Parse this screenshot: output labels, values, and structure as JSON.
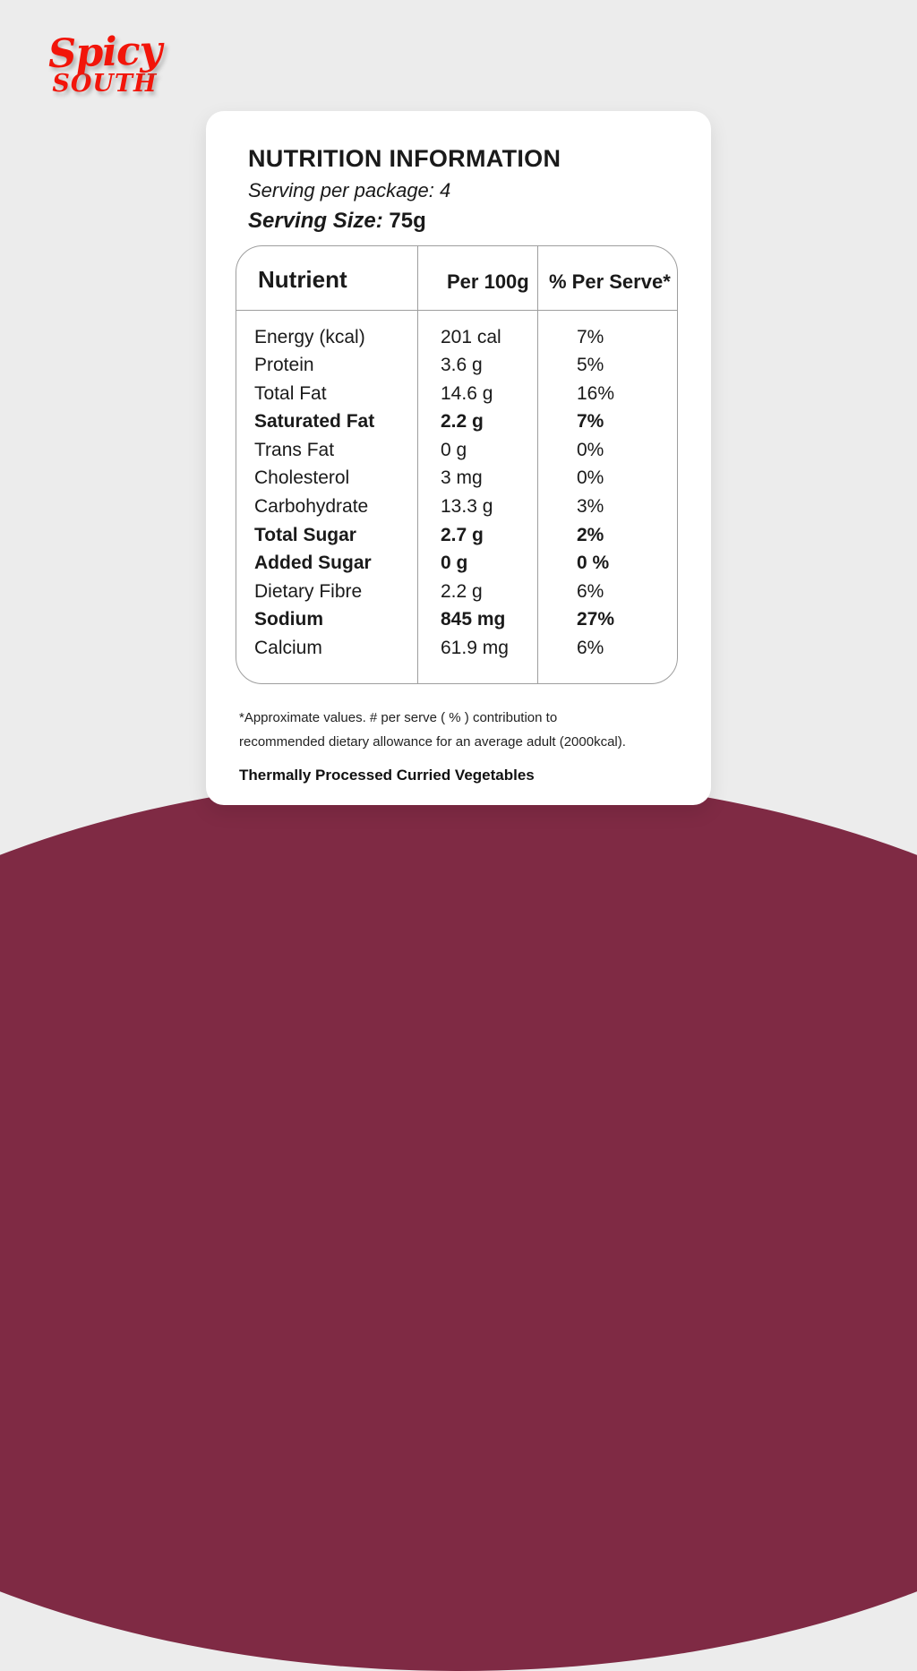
{
  "colors": {
    "background": "#ececec",
    "card": "#ffffff",
    "maroon_arc": "#7f2a44",
    "logo_red": "#f2150a",
    "table_border": "#9e9e9e",
    "text": "#1a1a1a"
  },
  "logo": {
    "line1": "Spicy",
    "line2": "SOUTH"
  },
  "card": {
    "title": "NUTRITION INFORMATION",
    "serving_per_package": "Serving per package: 4",
    "serving_size_label": "Serving Size:",
    "serving_size_value": "75g",
    "footnote_line1": "*Approximate values. # per serve  ( % )  contribution to",
    "footnote_line2": "recommended dietary allowance for an average adult (2000kcal).",
    "product_name": "Thermally Processed Curried Vegetables"
  },
  "table": {
    "columns": [
      "Nutrient",
      "Per 100g",
      "% Per Serve*"
    ],
    "rows": [
      {
        "nutrient": "Energy (kcal)",
        "per_100g": "201 cal",
        "per_serve": "7%",
        "bold": false
      },
      {
        "nutrient": "Protein",
        "per_100g": "3.6 g",
        "per_serve": "5%",
        "bold": false
      },
      {
        "nutrient": "Total Fat",
        "per_100g": "14.6 g",
        "per_serve": "16%",
        "bold": false
      },
      {
        "nutrient": "Saturated Fat",
        "per_100g": "2.2 g",
        "per_serve": "7%",
        "bold": true
      },
      {
        "nutrient": "Trans Fat",
        "per_100g": "0 g",
        "per_serve": "0%",
        "bold": false
      },
      {
        "nutrient": "Cholesterol",
        "per_100g": "3 mg",
        "per_serve": "0%",
        "bold": false
      },
      {
        "nutrient": "Carbohydrate",
        "per_100g": "13.3 g",
        "per_serve": "3%",
        "bold": false
      },
      {
        "nutrient": "Total Sugar",
        "per_100g": "2.7 g",
        "per_serve": "2%",
        "bold": true
      },
      {
        "nutrient": "Added Sugar",
        "per_100g": "0 g",
        "per_serve": "0 %",
        "bold": true
      },
      {
        "nutrient": "Dietary Fibre",
        "per_100g": "2.2 g",
        "per_serve": "6%",
        "bold": false
      },
      {
        "nutrient": "Sodium",
        "per_100g": "845 mg",
        "per_serve": "27%",
        "bold": true
      },
      {
        "nutrient": "Calcium",
        "per_100g": "61.9 mg",
        "per_serve": "6%",
        "bold": false
      }
    ]
  }
}
